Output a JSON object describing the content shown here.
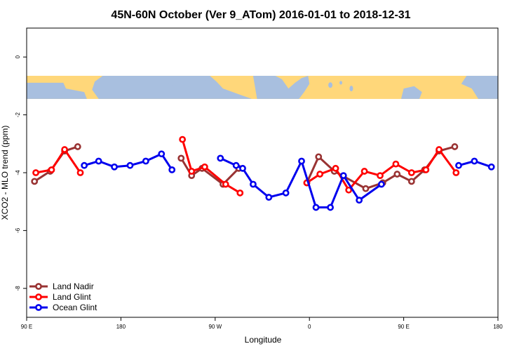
{
  "chart_data": {
    "type": "line",
    "title": "45N-60N October (Ver 9_ATom)   2016-01-01 to 2018-12-31",
    "xlabel": "Longitude",
    "ylabel": "XCO2 - MLO trend (ppm)",
    "xlim": [
      0,
      360
    ],
    "ylim": [
      -9.0,
      1.0
    ],
    "x_ticks": [
      {
        "value": 0,
        "label": "90 E"
      },
      {
        "value": 72,
        "label": "180"
      },
      {
        "value": 144,
        "label": "90 W"
      },
      {
        "value": 216,
        "label": "0"
      },
      {
        "value": 288,
        "label": "90 E"
      },
      {
        "value": 360,
        "label": "180"
      }
    ],
    "y_ticks": [
      {
        "value": 0,
        "label": "0"
      },
      {
        "value": -2,
        "label": "-2"
      },
      {
        "value": -4,
        "label": "-4"
      },
      {
        "value": -6,
        "label": "-6"
      },
      {
        "value": -8,
        "label": "-8"
      }
    ],
    "map_band": {
      "y_top": -0.65,
      "y_bottom": -1.45,
      "land_color": "#ffd77a",
      "ocean_color": "#a8bfdf"
    },
    "legend_position": "bottom-left",
    "grid": false,
    "series": [
      {
        "name": "Land Nadir",
        "color": "#993333",
        "segments": [
          [
            [
              6,
              -4.3
            ],
            [
              18,
              -3.95
            ],
            [
              29,
              -3.25
            ],
            [
              39,
              -3.1
            ]
          ],
          [
            [
              118,
              -3.5
            ],
            [
              126,
              -4.1
            ],
            [
              134,
              -3.85
            ],
            [
              150,
              -4.4
            ],
            [
              162,
              -3.85
            ]
          ],
          [
            [
              214,
              -4.35
            ],
            [
              223,
              -3.45
            ],
            [
              235,
              -3.95
            ],
            [
              259,
              -4.55
            ],
            [
              272,
              -4.35
            ],
            [
              283,
              -4.05
            ],
            [
              294,
              -4.3
            ],
            [
              304,
              -3.9
            ],
            [
              315,
              -3.25
            ],
            [
              327,
              -3.1
            ]
          ]
        ]
      },
      {
        "name": "Land Glint",
        "color": "#ff0000",
        "segments": [
          [
            [
              7,
              -4.0
            ],
            [
              19,
              -3.9
            ],
            [
              29,
              -3.2
            ],
            [
              41,
              -4.0
            ]
          ],
          [
            [
              119,
              -2.85
            ],
            [
              126,
              -3.95
            ],
            [
              136,
              -3.8
            ],
            [
              152,
              -4.4
            ],
            [
              163,
              -4.7
            ]
          ],
          [
            [
              214,
              -4.35
            ],
            [
              224,
              -4.05
            ],
            [
              236,
              -3.85
            ],
            [
              246,
              -4.6
            ],
            [
              258,
              -3.95
            ],
            [
              270,
              -4.1
            ],
            [
              282,
              -3.7
            ],
            [
              294,
              -4.0
            ],
            [
              305,
              -3.9
            ],
            [
              315,
              -3.2
            ],
            [
              328,
              -4.0
            ]
          ]
        ]
      },
      {
        "name": "Ocean Glint",
        "color": "#0000ee",
        "segments": [
          [
            [
              44,
              -3.75
            ],
            [
              55,
              -3.6
            ],
            [
              67,
              -3.8
            ],
            [
              79,
              -3.75
            ],
            [
              91,
              -3.6
            ],
            [
              103,
              -3.35
            ],
            [
              111,
              -3.9
            ]
          ],
          [
            [
              148,
              -3.5
            ],
            [
              160,
              -3.75
            ],
            [
              165,
              -3.85
            ],
            [
              173,
              -4.4
            ],
            [
              185,
              -4.85
            ],
            [
              198,
              -4.7
            ],
            [
              210,
              -3.6
            ],
            [
              221,
              -5.2
            ],
            [
              232,
              -5.2
            ],
            [
              242,
              -4.1
            ],
            [
              254,
              -4.95
            ],
            [
              271,
              -4.4
            ]
          ],
          [
            [
              330,
              -3.75
            ],
            [
              342,
              -3.6
            ],
            [
              355,
              -3.8
            ]
          ]
        ]
      }
    ]
  }
}
